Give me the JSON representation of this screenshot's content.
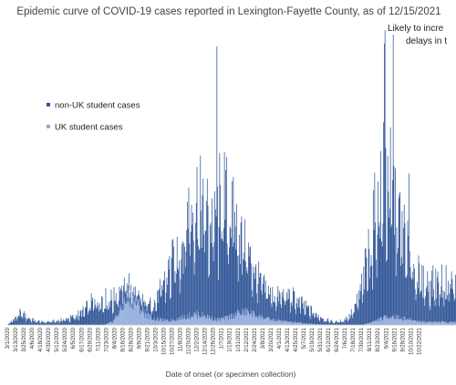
{
  "chart_data": {
    "type": "bar",
    "stacked": true,
    "title": "Epidemic curve of COVID-19 cases reported in Lexington-Fayette County, as of 12/15/2021",
    "annotation": "Likely to incre… delays in t…",
    "annotation_lines": [
      "Likely to incre",
      "delays in t"
    ],
    "xlabel": "Date of onset (or specimen collection)",
    "ylabel": "",
    "grid": false,
    "legend_position": "left, upper area of plot",
    "x_range": [
      "2020-03-01",
      "2021-12-15"
    ],
    "tick_labels": [
      "3/1/2020",
      "3/13/2020",
      "3/25/2020",
      "4/6/2020",
      "4/18/2020",
      "4/30/2020",
      "5/12/2020",
      "5/24/2020",
      "6/5/2020",
      "6/17/2020",
      "6/29/2020",
      "7/11/2020",
      "7/23/2020",
      "8/4/2020",
      "8/16/2020",
      "8/28/2020",
      "9/9/2020",
      "9/21/2020",
      "10/3/2020",
      "10/15/2020",
      "10/27/2020",
      "11/8/2020",
      "11/20/2020",
      "12/2/2020",
      "12/14/2020",
      "12/26/2020",
      "1/7/2021",
      "1/19/2021",
      "1/31/2021",
      "2/12/2021",
      "2/24/2021",
      "3/8/2021",
      "3/20/2021",
      "4/1/2021",
      "4/13/2021",
      "4/25/2021",
      "5/7/2021",
      "5/19/2021",
      "5/31/2021",
      "6/12/2021",
      "6/24/2021",
      "7/6/2021",
      "7/18/2021",
      "7/30/2021",
      "8/11/2021",
      "8/23/2021",
      "9/4/2021",
      "9/16/2021",
      "9/28/2021",
      "10/10/2021",
      "10/22/2021"
    ],
    "y_max": 240,
    "series": [
      {
        "name": "non-UK student cases",
        "color": "#2f5597",
        "points": [
          [
            "2020-03-01",
            0
          ],
          [
            "2020-03-10",
            6
          ],
          [
            "2020-03-20",
            12
          ],
          [
            "2020-03-30",
            8
          ],
          [
            "2020-04-10",
            4
          ],
          [
            "2020-04-25",
            3
          ],
          [
            "2020-05-10",
            4
          ],
          [
            "2020-05-25",
            6
          ],
          [
            "2020-06-05",
            8
          ],
          [
            "2020-06-20",
            14
          ],
          [
            "2020-07-01",
            22
          ],
          [
            "2020-07-15",
            28
          ],
          [
            "2020-07-25",
            25
          ],
          [
            "2020-08-05",
            22
          ],
          [
            "2020-08-15",
            18
          ],
          [
            "2020-08-25",
            12
          ],
          [
            "2020-09-05",
            8
          ],
          [
            "2020-09-15",
            10
          ],
          [
            "2020-09-25",
            12
          ],
          [
            "2020-10-05",
            20
          ],
          [
            "2020-10-15",
            40
          ],
          [
            "2020-10-25",
            55
          ],
          [
            "2020-11-01",
            65
          ],
          [
            "2020-11-10",
            78
          ],
          [
            "2020-11-17",
            95
          ],
          [
            "2020-11-24",
            110
          ],
          [
            "2020-12-01",
            115
          ],
          [
            "2020-12-08",
            112
          ],
          [
            "2020-12-15",
            105
          ],
          [
            "2020-12-22",
            95
          ],
          [
            "2020-12-29",
            108
          ],
          [
            "2021-01-05",
            122
          ],
          [
            "2021-01-12",
            118
          ],
          [
            "2021-01-19",
            105
          ],
          [
            "2021-01-26",
            92
          ],
          [
            "2021-02-02",
            82
          ],
          [
            "2021-02-09",
            70
          ],
          [
            "2021-02-16",
            58
          ],
          [
            "2021-02-23",
            45
          ],
          [
            "2021-03-02",
            38
          ],
          [
            "2021-03-09",
            32
          ],
          [
            "2021-03-16",
            28
          ],
          [
            "2021-03-23",
            25
          ],
          [
            "2021-03-30",
            24
          ],
          [
            "2021-04-06",
            26
          ],
          [
            "2021-04-13",
            27
          ],
          [
            "2021-04-20",
            25
          ],
          [
            "2021-04-27",
            22
          ],
          [
            "2021-05-04",
            19
          ],
          [
            "2021-05-11",
            16
          ],
          [
            "2021-05-18",
            13
          ],
          [
            "2021-05-25",
            10
          ],
          [
            "2021-06-01",
            8
          ],
          [
            "2021-06-08",
            5
          ],
          [
            "2021-06-15",
            4
          ],
          [
            "2021-06-22",
            3
          ],
          [
            "2021-06-29",
            4
          ],
          [
            "2021-07-06",
            6
          ],
          [
            "2021-07-13",
            10
          ],
          [
            "2021-07-20",
            18
          ],
          [
            "2021-07-27",
            30
          ],
          [
            "2021-08-03",
            50
          ],
          [
            "2021-08-10",
            75
          ],
          [
            "2021-08-17",
            100
          ],
          [
            "2021-08-24",
            125
          ],
          [
            "2021-08-31",
            140
          ],
          [
            "2021-09-07",
            140
          ],
          [
            "2021-09-14",
            125
          ],
          [
            "2021-09-21",
            105
          ],
          [
            "2021-09-28",
            88
          ],
          [
            "2021-10-05",
            72
          ],
          [
            "2021-10-12",
            58
          ],
          [
            "2021-10-19",
            48
          ],
          [
            "2021-10-26",
            40
          ]
        ]
      },
      {
        "name": "UK student cases",
        "color": "#8faadc",
        "points": [
          [
            "2020-03-01",
            0
          ],
          [
            "2020-07-20",
            0
          ],
          [
            "2020-08-01",
            3
          ],
          [
            "2020-08-10",
            12
          ],
          [
            "2020-08-18",
            22
          ],
          [
            "2020-08-25",
            27
          ],
          [
            "2020-09-01",
            25
          ],
          [
            "2020-09-10",
            17
          ],
          [
            "2020-09-20",
            10
          ],
          [
            "2020-10-01",
            6
          ],
          [
            "2020-10-20",
            4
          ],
          [
            "2020-11-15",
            8
          ],
          [
            "2020-12-01",
            11
          ],
          [
            "2020-12-15",
            9
          ],
          [
            "2020-12-31",
            5
          ],
          [
            "2021-01-15",
            7
          ],
          [
            "2021-01-31",
            12
          ],
          [
            "2021-02-15",
            13
          ],
          [
            "2021-03-01",
            9
          ],
          [
            "2021-03-20",
            5
          ],
          [
            "2021-04-15",
            3
          ],
          [
            "2021-05-15",
            1
          ],
          [
            "2021-06-15",
            0
          ],
          [
            "2021-07-31",
            0
          ],
          [
            "2021-08-15",
            3
          ],
          [
            "2021-08-31",
            7
          ],
          [
            "2021-09-10",
            9
          ],
          [
            "2021-09-25",
            7
          ],
          [
            "2021-10-10",
            5
          ],
          [
            "2021-10-26",
            3
          ]
        ]
      }
    ]
  }
}
